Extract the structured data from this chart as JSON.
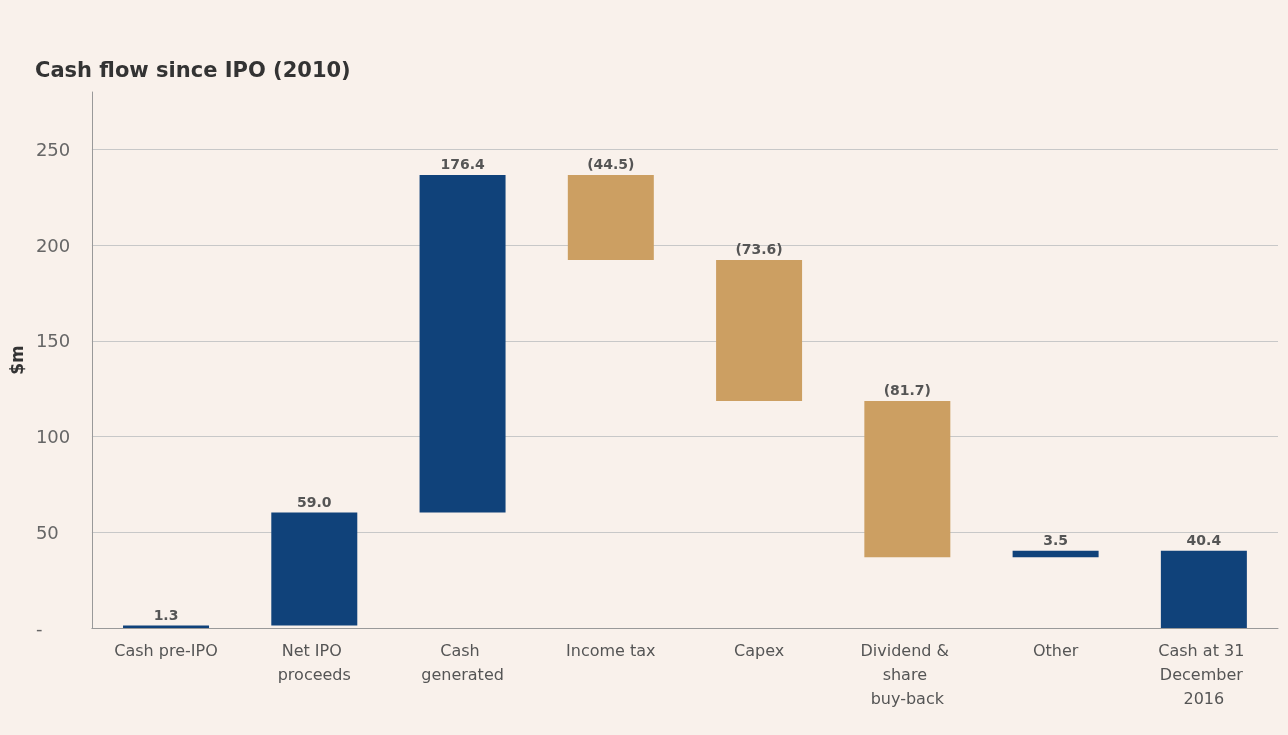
{
  "chart_data": {
    "type": "bar",
    "title": "Cash flow since IPO (2010)",
    "ylabel": "$m",
    "categories": [
      "Cash pre-IPO",
      "Net IPO proceeds",
      "Cash generated",
      "Income tax",
      "Capex",
      "Dividend & share buy-back",
      "Other",
      "Cash at 31 December 2016"
    ],
    "values": [
      1.3,
      59.0,
      176.4,
      -44.5,
      -73.6,
      -81.7,
      3.5,
      40.4
    ],
    "base": [
      0,
      1.3,
      60.3,
      236.7,
      192.2,
      118.6,
      36.9,
      0
    ],
    "value_labels": [
      "1.3",
      "59.0",
      "176.4",
      "(44.5)",
      "(73.6)",
      "(81.7)",
      "3.5",
      "40.4"
    ],
    "colors": [
      "#10427a",
      "#10427a",
      "#10427a",
      "#cc9f62",
      "#cc9f62",
      "#cc9f62",
      "#10427a",
      "#10427a"
    ],
    "ylim": [
      0,
      280
    ],
    "yticks": [
      {
        "value": 0,
        "label": "-"
      },
      50,
      100,
      150,
      200,
      250
    ],
    "grid": "y"
  }
}
